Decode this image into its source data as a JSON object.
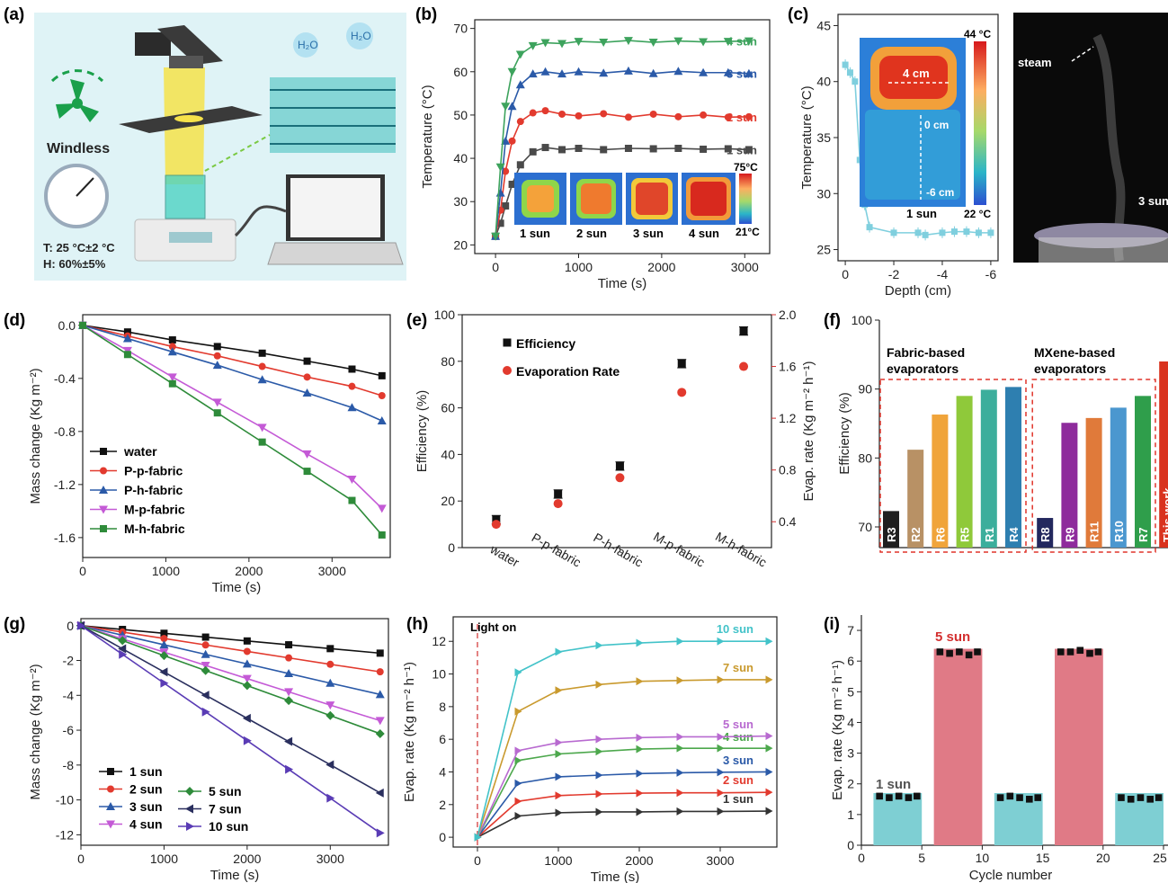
{
  "panels": {
    "a": {
      "label": "(a)",
      "windless": "Windless",
      "t_line": "T: 25 °C±2 °C",
      "h_line": "H: 60%±5%",
      "h2o_1": "H₂O",
      "h2o_2": "H₂O",
      "colors": {
        "bg": "#dff3f6",
        "light": "#f6e24a",
        "water": "#4fd3c4",
        "accent": "#1aa04b"
      }
    },
    "b": {
      "label": "(b)"
    },
    "c": {
      "label": "(c)",
      "steam_label": "steam",
      "sun_label": "3 sun"
    },
    "d": {
      "label": "(d)"
    },
    "e": {
      "label": "(e)"
    },
    "f": {
      "label": "(f)"
    },
    "g": {
      "label": "(g)"
    },
    "h": {
      "label": "(h)"
    },
    "i": {
      "label": "(i)"
    }
  },
  "chart_data": [
    {
      "id": "b",
      "type": "line",
      "xlabel": "Time (s)",
      "ylabel": "Temperature (°C)",
      "xlim": [
        -250,
        3300
      ],
      "ylim": [
        18,
        72
      ],
      "xticks": [
        0,
        1000,
        2000,
        3000
      ],
      "yticks": [
        20,
        30,
        40,
        50,
        60,
        70
      ],
      "series": [
        {
          "name": "1 sun",
          "color": "#4a4a4a",
          "marker": "square",
          "x": [
            0,
            60,
            120,
            200,
            300,
            450,
            600,
            800,
            1000,
            1300,
            1600,
            1900,
            2200,
            2500,
            2800,
            3050
          ],
          "y": [
            22,
            25,
            29,
            34,
            38.5,
            41.5,
            42.5,
            42,
            42.3,
            42,
            42.3,
            42.2,
            42.3,
            42.1,
            42.2,
            42
          ]
        },
        {
          "name": "2 sun",
          "color": "#e23a2e",
          "marker": "circle",
          "x": [
            0,
            60,
            120,
            200,
            300,
            450,
            600,
            800,
            1000,
            1300,
            1600,
            1900,
            2200,
            2500,
            2800,
            3050
          ],
          "y": [
            22,
            28,
            37,
            44,
            48.5,
            50.5,
            51,
            50.2,
            49.8,
            50.3,
            49.5,
            50.2,
            49.6,
            50,
            49.5,
            49.6
          ]
        },
        {
          "name": "3 sun",
          "color": "#2b5aa8",
          "marker": "triangle-up",
          "x": [
            0,
            60,
            120,
            200,
            300,
            450,
            600,
            800,
            1000,
            1300,
            1600,
            1900,
            2200,
            2500,
            2800,
            3050
          ],
          "y": [
            22,
            32,
            44,
            52,
            57,
            59.5,
            60,
            59.5,
            60,
            59.7,
            60.2,
            59.6,
            60.1,
            59.8,
            59.8,
            59.6
          ]
        },
        {
          "name": "4 sun",
          "color": "#3da35d",
          "marker": "triangle-down",
          "x": [
            0,
            60,
            120,
            200,
            300,
            450,
            600,
            800,
            1000,
            1300,
            1600,
            1900,
            2200,
            2500,
            2800,
            3050
          ],
          "y": [
            22,
            38,
            52,
            60,
            64,
            66,
            66.7,
            66.5,
            67,
            66.8,
            67.2,
            66.8,
            67.1,
            66.9,
            67,
            67.1
          ]
        }
      ],
      "inset": {
        "labels": [
          "1 sun",
          "2 sun",
          "3 sun",
          "4 sun"
        ],
        "scale_max": "75°C",
        "scale_min": "21°C"
      }
    },
    {
      "id": "c",
      "type": "line",
      "xlabel": "Depth (cm)",
      "ylabel": "Temperature (°C)",
      "xlim": [
        0.3,
        -6.3
      ],
      "ylim": [
        24,
        46
      ],
      "xticks": [
        0,
        -2,
        -4,
        -6
      ],
      "yticks": [
        25,
        30,
        35,
        40,
        45
      ],
      "series": [
        {
          "name": "",
          "color": "#7fcfde",
          "marker": "square",
          "x": [
            0,
            -0.2,
            -0.4,
            -0.6,
            -0.8,
            -1,
            -2,
            -3,
            -3.3,
            -4,
            -4.5,
            -5,
            -5.5,
            -6
          ],
          "y": [
            41.5,
            40.8,
            40,
            33,
            29,
            27,
            26.5,
            26.5,
            26.3,
            26.5,
            26.6,
            26.6,
            26.5,
            26.5
          ]
        }
      ],
      "inset": {
        "label_4cm": "4 cm",
        "label_0cm": "0 cm",
        "label_6cm": "-6 cm",
        "sun": "1 sun",
        "scale_max": "44 °C",
        "scale_min": "22 °C"
      }
    },
    {
      "id": "d",
      "type": "line",
      "xlabel": "Time (s)",
      "ylabel": "Mass change (Kg m⁻²)",
      "xlim": [
        0,
        3700
      ],
      "ylim": [
        -1.75,
        0.08
      ],
      "xticks": [
        0,
        1000,
        2000,
        3000
      ],
      "yticks": [
        0.0,
        -0.4,
        -0.8,
        -1.2,
        -1.6
      ],
      "ytick_labels": [
        "0.0",
        "-0.4",
        "-0.8",
        "-1.2",
        "-1.6"
      ],
      "x": [
        0,
        540,
        1080,
        1620,
        2160,
        2700,
        3240,
        3600
      ],
      "series": [
        {
          "name": "water",
          "color": "#111111",
          "marker": "square",
          "values": [
            0,
            -0.05,
            -0.11,
            -0.16,
            -0.21,
            -0.27,
            -0.33,
            -0.38
          ]
        },
        {
          "name": "P-p-fabric",
          "color": "#e23a2e",
          "marker": "circle",
          "values": [
            0,
            -0.08,
            -0.16,
            -0.23,
            -0.31,
            -0.39,
            -0.46,
            -0.53
          ]
        },
        {
          "name": "P-h-fabric",
          "color": "#2b5aa8",
          "marker": "triangle-up",
          "values": [
            0,
            -0.1,
            -0.2,
            -0.3,
            -0.41,
            -0.51,
            -0.62,
            -0.72
          ]
        },
        {
          "name": "M-p-fabric",
          "color": "#c45ad6",
          "marker": "triangle-down",
          "values": [
            0,
            -0.19,
            -0.39,
            -0.58,
            -0.77,
            -0.97,
            -1.16,
            -1.38
          ]
        },
        {
          "name": "M-h-fabric",
          "color": "#2e8b3a",
          "marker": "square",
          "values": [
            0,
            -0.22,
            -0.44,
            -0.66,
            -0.88,
            -1.1,
            -1.32,
            -1.58
          ]
        }
      ]
    },
    {
      "id": "e",
      "type": "scatter",
      "categories": [
        "water",
        "P-p-fabric",
        "P-h-fabric",
        "M-p-fabric",
        "M-h-fabric"
      ],
      "ylabel": "Efficiency (%)",
      "y2label": "Evap. rate (Kg m⁻² h⁻¹)",
      "ylim": [
        0,
        100
      ],
      "y2lim": [
        0.2,
        2.0
      ],
      "yticks": [
        0,
        20,
        40,
        60,
        80,
        100
      ],
      "y2ticks": [
        0.4,
        0.8,
        1.2,
        1.6,
        2.0
      ],
      "y2tick_labels": [
        "0.4",
        "0.8",
        "1.2",
        "1.6",
        "2.0"
      ],
      "series": [
        {
          "name": "Efficiency",
          "color": "#111111",
          "marker": "square",
          "values": [
            12,
            23,
            35,
            79,
            93
          ],
          "errors": [
            1.8,
            1.8,
            1.8,
            1.8,
            1.8
          ]
        },
        {
          "name": "Evaporation Rate",
          "color": "#e23a2e",
          "marker": "circle",
          "axis": "right",
          "values": [
            0.38,
            0.54,
            0.74,
            1.4,
            1.6
          ]
        }
      ]
    },
    {
      "id": "f",
      "type": "bar",
      "ylabel": "Efficiency (%)",
      "ylim": [
        67,
        100
      ],
      "yticks": [
        70,
        80,
        90,
        100
      ],
      "group_labels": [
        "Fabric-based\nevaporators",
        "MXene-based\nevaporators"
      ],
      "categories": [
        "R3",
        "R2",
        "R6",
        "R5",
        "R1",
        "R4",
        "R8",
        "R9",
        "R11",
        "R10",
        "R7",
        "This work"
      ],
      "values": [
        72.3,
        81.2,
        86.3,
        89.0,
        89.9,
        90.3,
        71.3,
        85.1,
        85.8,
        87.3,
        89.0,
        94.0
      ],
      "colors": [
        "#1f1f1f",
        "#b89165",
        "#f0a43a",
        "#8fc93a",
        "#3cae9c",
        "#2e7fb0",
        "#23285e",
        "#8e2b9c",
        "#e07a3a",
        "#4b97cf",
        "#2f9e4b",
        "#d9331e"
      ]
    },
    {
      "id": "g",
      "type": "line",
      "xlabel": "Time (s)",
      "ylabel": "Mass change (Kg m⁻²)",
      "xlim": [
        0,
        3700
      ],
      "ylim": [
        -12.6,
        0.4
      ],
      "xticks": [
        0,
        1000,
        2000,
        3000
      ],
      "yticks": [
        0,
        -2,
        -4,
        -6,
        -8,
        -10,
        -12
      ],
      "x": [
        0,
        500,
        1000,
        1500,
        2000,
        2500,
        3000,
        3600
      ],
      "series": [
        {
          "name": "1 sun",
          "color": "#111111",
          "marker": "square",
          "values": [
            0,
            -0.22,
            -0.44,
            -0.66,
            -0.88,
            -1.1,
            -1.32,
            -1.58
          ]
        },
        {
          "name": "2 sun",
          "color": "#e23a2e",
          "marker": "circle",
          "values": [
            0,
            -0.37,
            -0.74,
            -1.11,
            -1.48,
            -1.85,
            -2.22,
            -2.65
          ]
        },
        {
          "name": "3 sun",
          "color": "#2b5aa8",
          "marker": "triangle-up",
          "values": [
            0,
            -0.55,
            -1.1,
            -1.65,
            -2.2,
            -2.75,
            -3.3,
            -3.95
          ]
        },
        {
          "name": "4 sun",
          "color": "#c45ad6",
          "marker": "triangle-down",
          "values": [
            0,
            -0.76,
            -1.52,
            -2.28,
            -3.04,
            -3.8,
            -4.56,
            -5.45
          ]
        },
        {
          "name": "5 sun",
          "color": "#2e8b3a",
          "marker": "diamond",
          "values": [
            0,
            -0.86,
            -1.72,
            -2.58,
            -3.44,
            -4.3,
            -5.16,
            -6.2
          ]
        },
        {
          "name": "7 sun",
          "color": "#2a2f5e",
          "marker": "triangle-left",
          "values": [
            0,
            -1.33,
            -2.66,
            -3.99,
            -5.32,
            -6.65,
            -7.98,
            -9.6
          ]
        },
        {
          "name": "10 sun",
          "color": "#5a3cb5",
          "marker": "triangle-right",
          "values": [
            0,
            -1.65,
            -3.3,
            -4.95,
            -6.6,
            -8.25,
            -9.9,
            -11.9
          ]
        }
      ]
    },
    {
      "id": "h",
      "type": "line",
      "xlabel": "Time (s)",
      "ylabel": "Evap. rate (Kg m⁻² h⁻¹)",
      "xlim": [
        -300,
        3700
      ],
      "ylim": [
        -0.6,
        13.5
      ],
      "xticks": [
        0,
        1000,
        2000,
        3000
      ],
      "yticks": [
        0,
        2,
        4,
        6,
        8,
        10,
        12
      ],
      "annotation": "Light on",
      "x": [
        0,
        500,
        1000,
        1500,
        2000,
        2500,
        3000,
        3600
      ],
      "series": [
        {
          "name": "1 sun",
          "color": "#333333",
          "values": [
            0,
            1.3,
            1.5,
            1.55,
            1.55,
            1.58,
            1.58,
            1.6
          ]
        },
        {
          "name": "2 sun",
          "color": "#e23a2e",
          "values": [
            0,
            2.2,
            2.55,
            2.65,
            2.7,
            2.72,
            2.72,
            2.75
          ]
        },
        {
          "name": "3 sun",
          "color": "#2b5aa8",
          "values": [
            0,
            3.3,
            3.7,
            3.8,
            3.9,
            3.95,
            3.98,
            4.0
          ]
        },
        {
          "name": "4 sun",
          "color": "#4da84d",
          "values": [
            0,
            4.7,
            5.1,
            5.25,
            5.4,
            5.45,
            5.45,
            5.45
          ]
        },
        {
          "name": "5 sun",
          "color": "#b86ad0",
          "values": [
            0,
            5.3,
            5.8,
            6.0,
            6.1,
            6.15,
            6.15,
            6.2
          ]
        },
        {
          "name": "7 sun",
          "color": "#c99a2e",
          "values": [
            0,
            7.7,
            9.0,
            9.35,
            9.55,
            9.6,
            9.65,
            9.65
          ]
        },
        {
          "name": "10 sun",
          "color": "#43c3c9",
          "values": [
            0,
            10.1,
            11.35,
            11.75,
            11.9,
            12.0,
            12.0,
            12.0
          ]
        }
      ]
    },
    {
      "id": "i",
      "type": "bar",
      "xlabel": "Cycle number",
      "ylabel": "Evap. rate (Kg m⁻² h⁻¹)",
      "xlim": [
        0,
        25
      ],
      "ylim": [
        0,
        7.5
      ],
      "xticks": [
        0,
        5,
        10,
        15,
        20,
        25
      ],
      "yticks": [
        0,
        1,
        2,
        3,
        4,
        5,
        6,
        7
      ],
      "blocks": [
        {
          "x0": 1,
          "x1": 5,
          "value": 1.7,
          "color": "#7ecfd3"
        },
        {
          "x0": 6,
          "x1": 10,
          "value": 6.4,
          "color": "#e07a86"
        },
        {
          "x0": 11,
          "x1": 15,
          "value": 1.7,
          "color": "#7ecfd3"
        },
        {
          "x0": 16,
          "x1": 20,
          "value": 6.4,
          "color": "#e07a86"
        },
        {
          "x0": 21,
          "x1": 25,
          "value": 1.7,
          "color": "#7ecfd3"
        }
      ],
      "points": {
        "x": [
          1.5,
          2.3,
          3.1,
          3.9,
          4.6,
          6.5,
          7.3,
          8.1,
          8.9,
          9.6,
          11.5,
          12.3,
          13.1,
          13.9,
          14.6,
          16.5,
          17.3,
          18.1,
          18.9,
          19.6,
          21.5,
          22.3,
          23.1,
          23.9,
          24.6
        ],
        "y": [
          1.6,
          1.55,
          1.6,
          1.55,
          1.6,
          6.3,
          6.25,
          6.3,
          6.2,
          6.3,
          1.55,
          1.6,
          1.55,
          1.5,
          1.55,
          6.3,
          6.3,
          6.35,
          6.25,
          6.3,
          1.55,
          1.5,
          1.55,
          1.5,
          1.55
        ]
      },
      "annotations": {
        "low": "1 sun",
        "high": "5 sun"
      }
    }
  ]
}
